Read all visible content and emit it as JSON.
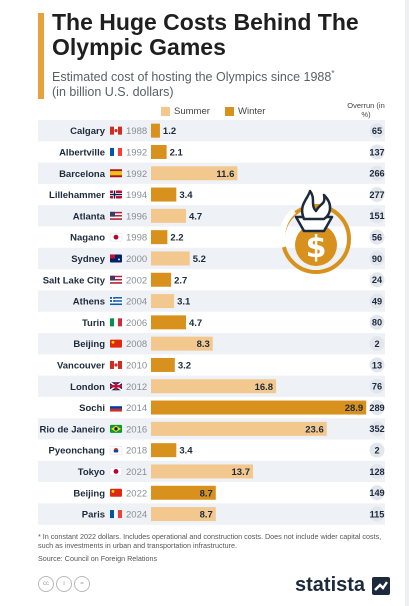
{
  "title": "The Huge Costs Behind The Olympic Games",
  "subtitle": "Estimated cost of hosting the Olympics since 1988",
  "subtitle_mark": "*",
  "subtitle_unit": "(in billion U.S. dollars)",
  "overrun_header": "Overrun (in %)",
  "footnote": "* In constant 2022 dollars. Includes operational and construction costs. Does not include wider capital costs, such as investments in urban and transportation infrastructure.",
  "source": "Source: Council on Foreign Relations",
  "brand": "statista",
  "icons": [
    "cc-icon",
    "attribution-icon",
    "equals-icon",
    "torch-dollar-icon"
  ],
  "colors": {
    "summer": "#f3c88f",
    "winter": "#d9911e",
    "accent": "#e7a23a",
    "row_band": "#eef1f5"
  },
  "chart_data": {
    "type": "bar",
    "orientation": "horizontal",
    "xlim": [
      0,
      30
    ],
    "series": [
      {
        "name": "Summer",
        "color": "#f3c88f"
      },
      {
        "name": "Winter",
        "color": "#d9911e"
      }
    ],
    "rows": [
      {
        "city": "Calgary",
        "year": "1988",
        "flag": "flag-canada-icon",
        "season": "Winter",
        "value": 1.2,
        "label": "1.2",
        "overrun": "65"
      },
      {
        "city": "Albertville",
        "year": "1992",
        "flag": "flag-france-icon",
        "season": "Winter",
        "value": 2.1,
        "label": "2.1",
        "overrun": "137"
      },
      {
        "city": "Barcelona",
        "year": "1992",
        "flag": "flag-spain-icon",
        "season": "Summer",
        "value": 11.6,
        "label": "11.6",
        "overrun": "266"
      },
      {
        "city": "Lillehammer",
        "year": "1994",
        "flag": "flag-norway-icon",
        "season": "Winter",
        "value": 3.4,
        "label": "3.4",
        "overrun": "277"
      },
      {
        "city": "Atlanta",
        "year": "1996",
        "flag": "flag-usa-icon",
        "season": "Summer",
        "value": 4.7,
        "label": "4.7",
        "overrun": "151"
      },
      {
        "city": "Nagano",
        "year": "1998",
        "flag": "flag-japan-icon",
        "season": "Winter",
        "value": 2.2,
        "label": "2.2",
        "overrun": "56"
      },
      {
        "city": "Sydney",
        "year": "2000",
        "flag": "flag-australia-icon",
        "season": "Summer",
        "value": 5.2,
        "label": "5.2",
        "overrun": "90"
      },
      {
        "city": "Salt Lake City",
        "year": "2002",
        "flag": "flag-usa-icon",
        "season": "Winter",
        "value": 2.7,
        "label": "2.7",
        "overrun": "24"
      },
      {
        "city": "Athens",
        "year": "2004",
        "flag": "flag-greece-icon",
        "season": "Summer",
        "value": 3.1,
        "label": "3.1",
        "overrun": "49"
      },
      {
        "city": "Turin",
        "year": "2006",
        "flag": "flag-italy-icon",
        "season": "Winter",
        "value": 4.7,
        "label": "4.7",
        "overrun": "80"
      },
      {
        "city": "Beijing",
        "year": "2008",
        "flag": "flag-china-icon",
        "season": "Summer",
        "value": 8.3,
        "label": "8.3",
        "overrun": "2"
      },
      {
        "city": "Vancouver",
        "year": "2010",
        "flag": "flag-canada-icon",
        "season": "Winter",
        "value": 3.2,
        "label": "3.2",
        "overrun": "13"
      },
      {
        "city": "London",
        "year": "2012",
        "flag": "flag-uk-icon",
        "season": "Summer",
        "value": 16.8,
        "label": "16.8",
        "overrun": "76"
      },
      {
        "city": "Sochi",
        "year": "2014",
        "flag": "flag-russia-icon",
        "season": "Winter",
        "value": 28.9,
        "label": "28.9",
        "overrun": "289"
      },
      {
        "city": "Rio de Janeiro",
        "year": "2016",
        "flag": "flag-brazil-icon",
        "season": "Summer",
        "value": 23.6,
        "label": "23.6",
        "overrun": "352"
      },
      {
        "city": "Pyeonchang",
        "year": "2018",
        "flag": "flag-south-korea-icon",
        "season": "Winter",
        "value": 3.4,
        "label": "3.4",
        "overrun": "2"
      },
      {
        "city": "Tokyo",
        "year": "2021",
        "flag": "flag-japan-icon",
        "season": "Summer",
        "value": 13.7,
        "label": "13.7",
        "overrun": "128"
      },
      {
        "city": "Beijing",
        "year": "2022",
        "flag": "flag-china-icon",
        "season": "Winter",
        "value": 8.7,
        "label": "8.7",
        "overrun": "149"
      },
      {
        "city": "Paris",
        "year": "2024",
        "flag": "flag-france-icon",
        "season": "Summer",
        "value": 8.7,
        "label": "8.7",
        "overrun": "115"
      }
    ]
  }
}
